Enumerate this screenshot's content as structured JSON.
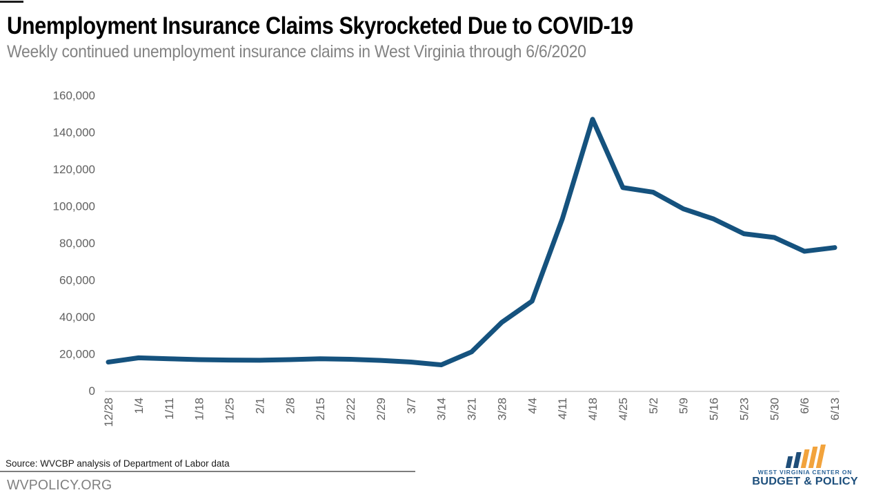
{
  "header": {
    "title": "Unemployment Insurance Claims Skyrocketed Due to COVID-19",
    "subtitle": "Weekly continued unemployment insurance claims in West Virginia through 6/6/2020"
  },
  "chart_data": {
    "type": "line",
    "title": "Unemployment Insurance Claims Skyrocketed Due to COVID-19",
    "subtitle": "Weekly continued unemployment insurance claims in West Virginia through 6/6/2020",
    "categories": [
      "12/28",
      "1/4",
      "1/11",
      "1/18",
      "1/25",
      "2/1",
      "2/8",
      "2/15",
      "2/22",
      "2/29",
      "3/7",
      "3/14",
      "3/21",
      "3/28",
      "4/4",
      "4/11",
      "4/18",
      "4/25",
      "5/2",
      "5/9",
      "5/16",
      "5/23",
      "5/30",
      "6/6",
      "6/13"
    ],
    "values": [
      15500,
      17800,
      17300,
      16800,
      16600,
      16500,
      16800,
      17300,
      17000,
      16400,
      15500,
      14000,
      21000,
      37000,
      48500,
      93000,
      147000,
      110000,
      107500,
      98500,
      93000,
      85000,
      83000,
      75500,
      77500
    ],
    "xlabel": "",
    "ylabel": "",
    "ylim": [
      0,
      160000
    ],
    "y_tick_step": 20000,
    "y_tick_labels": [
      "0",
      "20,000",
      "40,000",
      "60,000",
      "80,000",
      "100,000",
      "120,000",
      "140,000",
      "160,000"
    ],
    "grid": false,
    "legend": "none",
    "line_color": "#15527e",
    "axis_line_color": "#c9c9c9",
    "tick_label_color": "#616161"
  },
  "footer": {
    "source": "Source: WVCBP analysis of Department of Labor data",
    "website": "WVPOLICY.ORG",
    "logo": {
      "line1": "WEST VIRGINIA CENTER ON",
      "line2": "BUDGET & POLICY",
      "icon": "bar-chart-icon",
      "bar_colors": [
        "#1f4e79",
        "#1f4e79",
        "#f2a33c",
        "#f2a33c",
        "#f2a33c"
      ],
      "line1_color": "#2a6398",
      "line2_color": "#1d4f7c"
    }
  }
}
